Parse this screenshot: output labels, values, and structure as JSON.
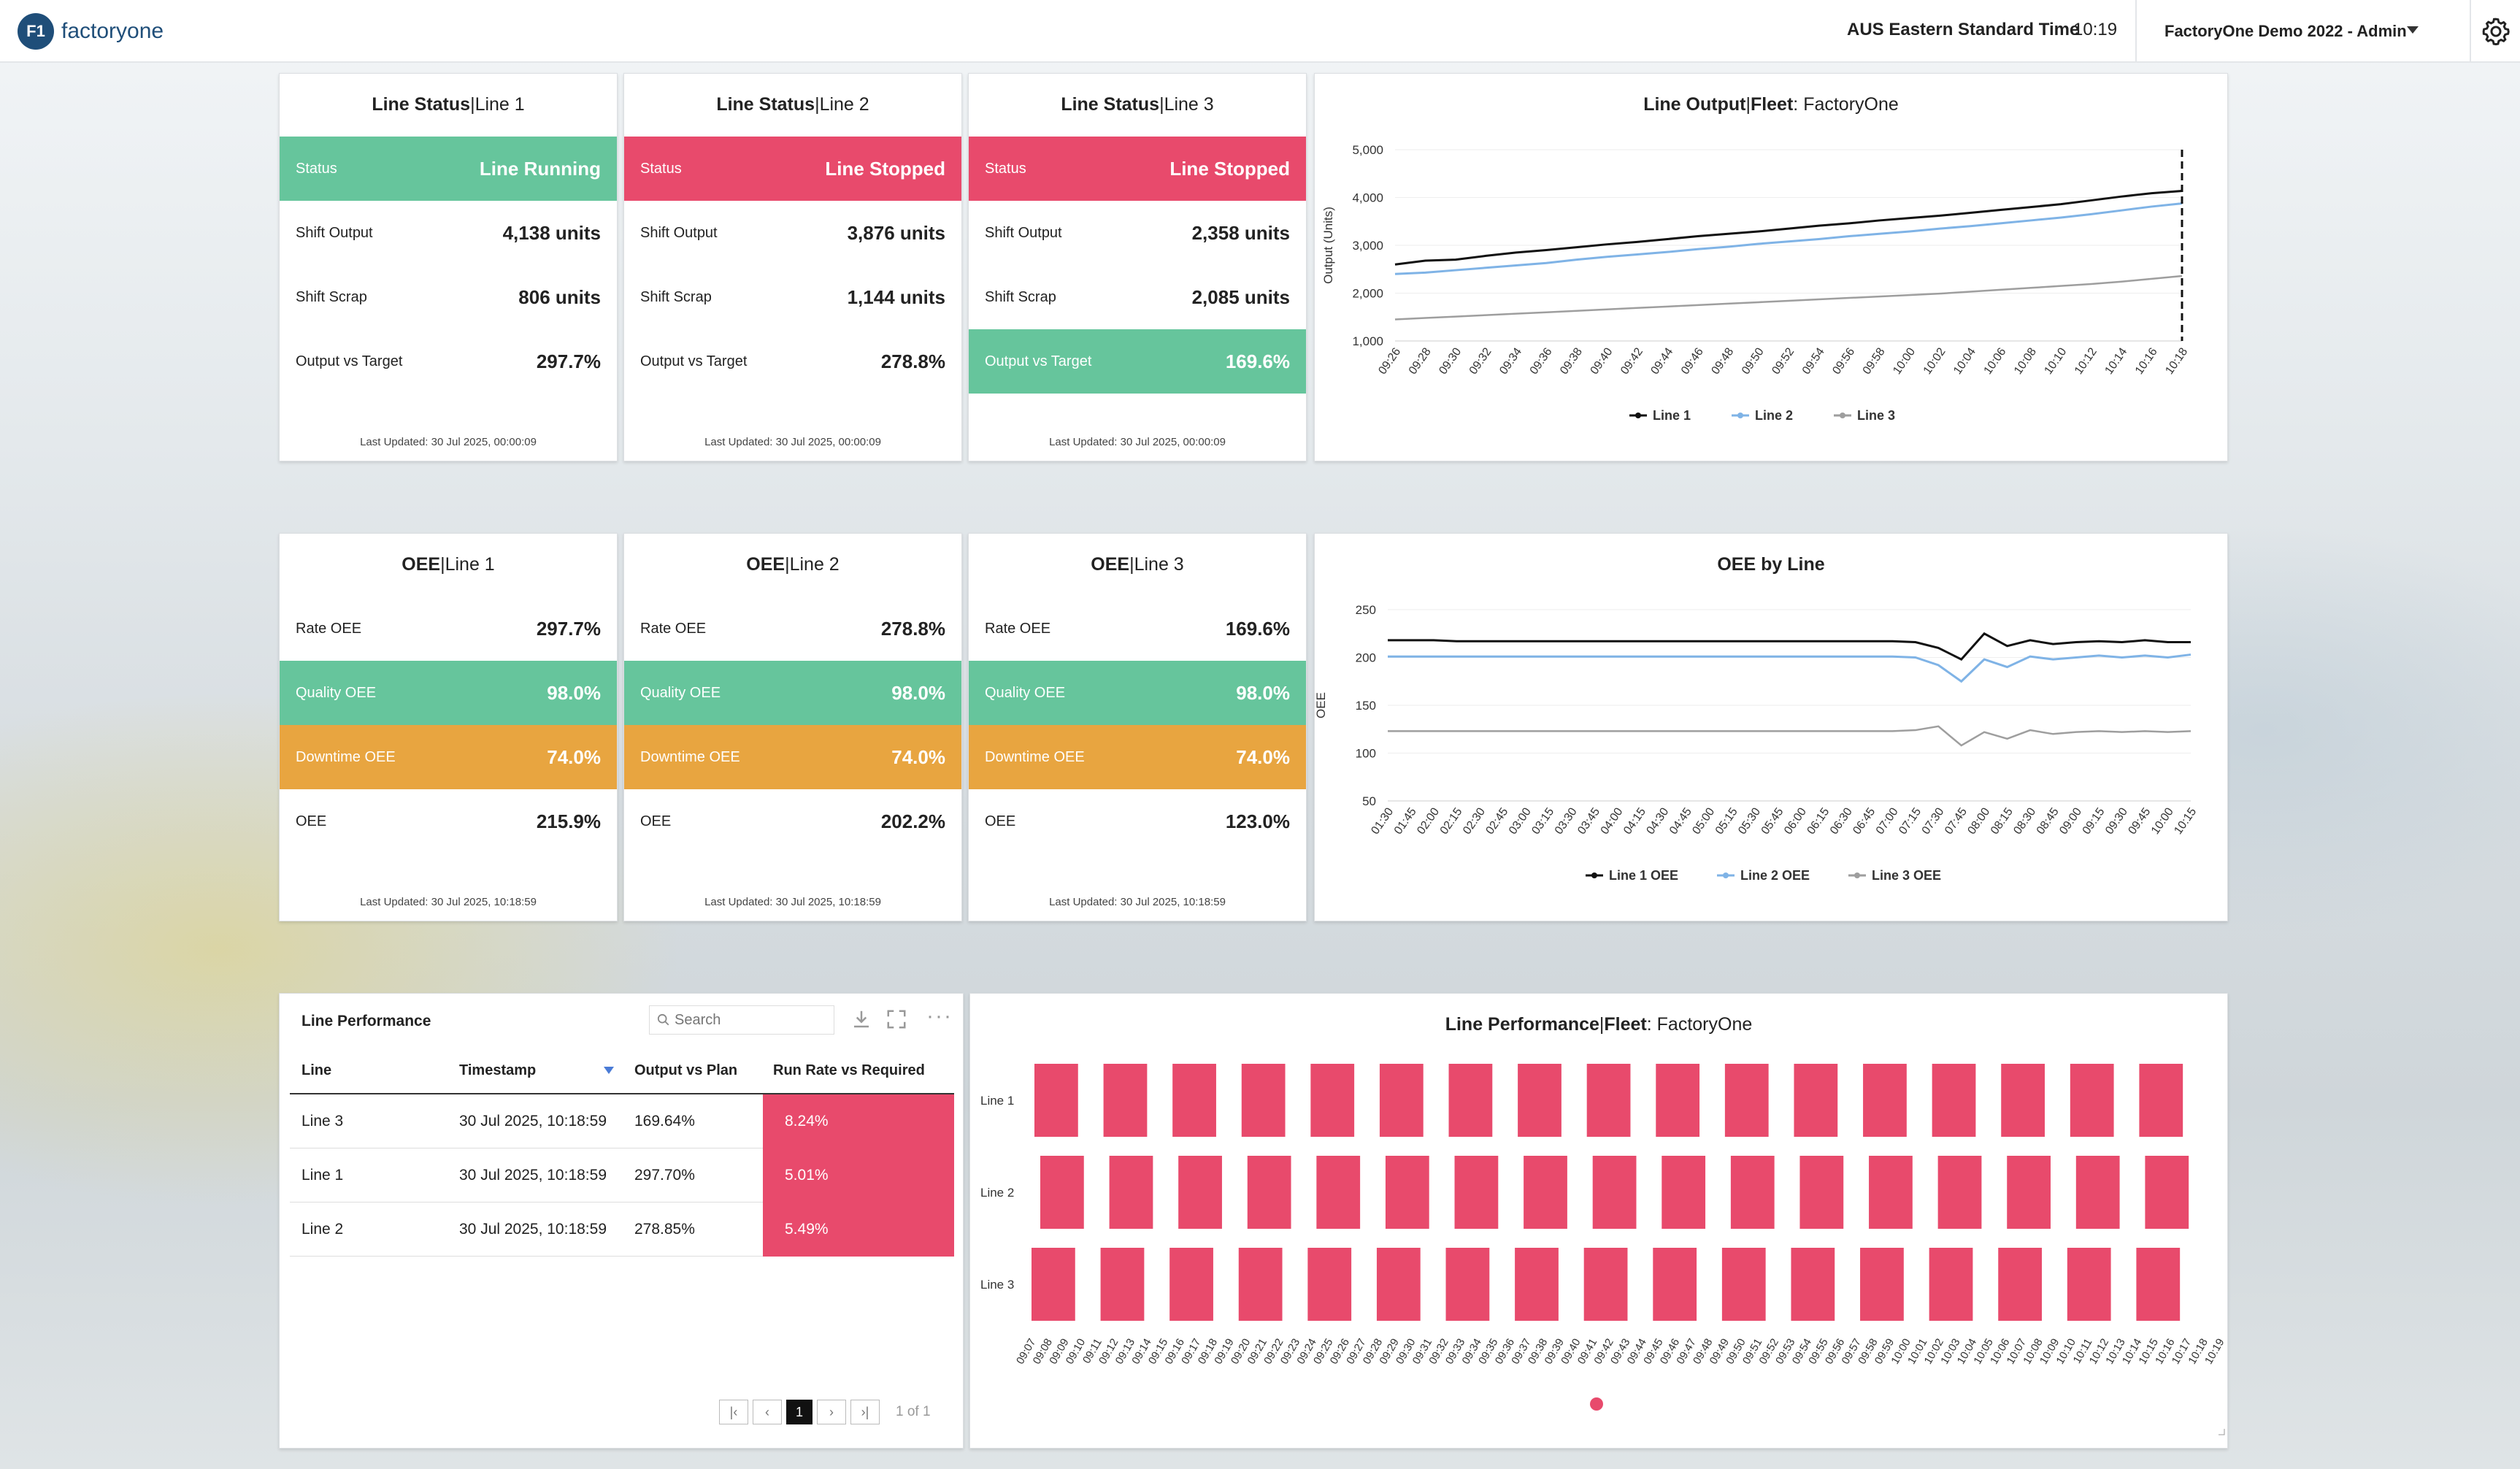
{
  "header": {
    "logo_mark": "F1",
    "logo_text": "factoryone",
    "timezone": "AUS Eastern Standard Time",
    "time": "10:19",
    "tenant": "FactoryOne Demo 2022 - Admin"
  },
  "status_cards": [
    {
      "title_bold": "Line Status",
      "title_sep": "|",
      "title_rest": "Line 1",
      "status_label": "Status",
      "status_value": "Line Running",
      "status_color": "#66c59c",
      "rows": [
        {
          "label": "Shift Output",
          "value": "4,138 units"
        },
        {
          "label": "Shift Scrap",
          "value": "806 units"
        },
        {
          "label": "Output vs Target",
          "value": "297.7%"
        }
      ],
      "updated": "Last Updated: 30 Jul 2025, 00:00:09"
    },
    {
      "title_bold": "Line Status",
      "title_sep": "|",
      "title_rest": "Line 2",
      "status_label": "Status",
      "status_value": "Line Stopped",
      "status_color": "#e84a6c",
      "rows": [
        {
          "label": "Shift Output",
          "value": "3,876 units"
        },
        {
          "label": "Shift Scrap",
          "value": "1,144 units"
        },
        {
          "label": "Output vs Target",
          "value": "278.8%"
        }
      ],
      "updated": "Last Updated: 30 Jul 2025, 00:00:09"
    },
    {
      "title_bold": "Line Status",
      "title_sep": "|",
      "title_rest": "Line 3",
      "status_label": "Status",
      "status_value": "Line Stopped",
      "status_color": "#e84a6c",
      "rows": [
        {
          "label": "Shift Output",
          "value": "2,358 units"
        },
        {
          "label": "Shift Scrap",
          "value": "2,085 units"
        },
        {
          "label": "Output vs Target",
          "value": "169.6%",
          "highlight": "#66c59c"
        }
      ],
      "updated": "Last Updated: 30 Jul 2025, 00:00:09"
    }
  ],
  "oee_cards": [
    {
      "title_bold": "OEE",
      "title_sep": "|",
      "title_rest": "Line 1",
      "rows": [
        {
          "label": "Rate OEE",
          "value": "297.7%"
        },
        {
          "label": "Quality OEE",
          "value": "98.0%"
        },
        {
          "label": "Downtime OEE",
          "value": "74.0%"
        },
        {
          "label": "OEE",
          "value": "215.9%"
        }
      ],
      "updated": "Last Updated: 30 Jul 2025, 10:18:59"
    },
    {
      "title_bold": "OEE",
      "title_sep": "|",
      "title_rest": "Line 2",
      "rows": [
        {
          "label": "Rate OEE",
          "value": "278.8%"
        },
        {
          "label": "Quality OEE",
          "value": "98.0%"
        },
        {
          "label": "Downtime OEE",
          "value": "74.0%"
        },
        {
          "label": "OEE",
          "value": "202.2%"
        }
      ],
      "updated": "Last Updated: 30 Jul 2025, 10:18:59"
    },
    {
      "title_bold": "OEE",
      "title_sep": "|",
      "title_rest": "Line 3",
      "rows": [
        {
          "label": "Rate OEE",
          "value": "169.6%"
        },
        {
          "label": "Quality OEE",
          "value": "98.0%"
        },
        {
          "label": "Downtime OEE",
          "value": "74.0%"
        },
        {
          "label": "OEE",
          "value": "123.0%"
        }
      ],
      "updated": "Last Updated: 30 Jul 2025, 10:18:59"
    }
  ],
  "colors": {
    "green": "#66c59c",
    "red": "#e84a6c",
    "orange": "#e8a540",
    "line1": "#111111",
    "line2": "#7fb3e6",
    "line3": "#9e9e9e"
  },
  "table": {
    "title": "Line Performance",
    "search_placeholder": "Search",
    "columns": [
      "Line",
      "Timestamp",
      "Output vs Plan",
      "Run Rate vs Required"
    ],
    "rows": [
      [
        "Line 3",
        "30 Jul 2025, 10:18:59",
        "169.64%",
        "8.24%"
      ],
      [
        "Line 1",
        "30 Jul 2025, 10:18:59",
        "297.70%",
        "5.01%"
      ],
      [
        "Line 2",
        "30 Jul 2025, 10:18:59",
        "278.85%",
        "5.49%"
      ]
    ],
    "page": "1",
    "page_info": "1 of 1"
  },
  "chart_data": [
    {
      "type": "line",
      "title_bold": "Line Output",
      "title_sep": "|",
      "title_mid": "Fleet",
      "title_rest": ": FactoryOne",
      "ylabel": "Output (Units)",
      "ylim": [
        1000,
        5000
      ],
      "yticks": [
        "1,000",
        "2,000",
        "3,000",
        "4,000",
        "5,000"
      ],
      "x": [
        "09:26",
        "09:28",
        "09:30",
        "09:32",
        "09:34",
        "09:36",
        "09:38",
        "09:40",
        "09:42",
        "09:44",
        "09:46",
        "09:48",
        "09:50",
        "09:52",
        "09:54",
        "09:56",
        "09:58",
        "10:00",
        "10:02",
        "10:04",
        "10:06",
        "10:08",
        "10:10",
        "10:12",
        "10:14",
        "10:16",
        "10:18"
      ],
      "series": [
        {
          "name": "Line 1",
          "values": [
            2600,
            2680,
            2700,
            2780,
            2850,
            2900,
            2960,
            3020,
            3070,
            3130,
            3190,
            3240,
            3290,
            3350,
            3410,
            3460,
            3520,
            3570,
            3620,
            3680,
            3740,
            3800,
            3860,
            3940,
            4020,
            4090,
            4138
          ]
        },
        {
          "name": "Line 2",
          "values": [
            2400,
            2430,
            2480,
            2530,
            2580,
            2630,
            2700,
            2760,
            2810,
            2860,
            2920,
            2970,
            3030,
            3080,
            3130,
            3190,
            3240,
            3290,
            3350,
            3400,
            3460,
            3520,
            3580,
            3650,
            3730,
            3810,
            3876
          ]
        },
        {
          "name": "Line 3",
          "values": [
            1450,
            1480,
            1510,
            1540,
            1570,
            1600,
            1630,
            1660,
            1690,
            1720,
            1750,
            1780,
            1810,
            1840,
            1870,
            1900,
            1930,
            1960,
            1990,
            2030,
            2070,
            2110,
            2150,
            2190,
            2240,
            2300,
            2358
          ]
        }
      ]
    },
    {
      "type": "line",
      "title": "OEE by Line",
      "ylabel": "OEE",
      "ylim": [
        50,
        250
      ],
      "yticks": [
        "50",
        "100",
        "150",
        "200",
        "250"
      ],
      "x": [
        "01:30",
        "01:45",
        "02:00",
        "02:15",
        "02:30",
        "02:45",
        "03:00",
        "03:15",
        "03:30",
        "03:45",
        "04:00",
        "04:15",
        "04:30",
        "04:45",
        "05:00",
        "05:15",
        "05:30",
        "05:45",
        "06:00",
        "06:15",
        "06:30",
        "06:45",
        "07:00",
        "07:15",
        "07:30",
        "07:45",
        "08:00",
        "08:15",
        "08:30",
        "08:45",
        "09:00",
        "09:15",
        "09:30",
        "09:45",
        "10:00",
        "10:15"
      ],
      "series": [
        {
          "name": "Line 1 OEE",
          "values": [
            218,
            218,
            218,
            217,
            217,
            217,
            217,
            217,
            217,
            217,
            217,
            217,
            217,
            217,
            217,
            217,
            217,
            217,
            217,
            217,
            217,
            217,
            217,
            216,
            210,
            198,
            225,
            212,
            218,
            214,
            216,
            217,
            216,
            218,
            216,
            216
          ]
        },
        {
          "name": "Line 2 OEE",
          "values": [
            201,
            201,
            201,
            201,
            201,
            201,
            201,
            201,
            201,
            201,
            201,
            201,
            201,
            201,
            201,
            201,
            201,
            201,
            201,
            201,
            201,
            201,
            201,
            200,
            192,
            175,
            198,
            190,
            201,
            198,
            200,
            202,
            200,
            202,
            200,
            203
          ]
        },
        {
          "name": "Line 3 OEE",
          "values": [
            123,
            123,
            123,
            123,
            123,
            123,
            123,
            123,
            123,
            123,
            123,
            123,
            123,
            123,
            123,
            123,
            123,
            123,
            123,
            123,
            123,
            123,
            123,
            124,
            128,
            108,
            122,
            115,
            124,
            120,
            122,
            123,
            122,
            123,
            122,
            123
          ]
        }
      ]
    },
    {
      "type": "heatmap",
      "title_bold": "Line Performance",
      "title_sep": "|",
      "title_mid": "Fleet",
      "title_rest": ": FactoryOne",
      "rows": [
        "Line 1",
        "Line 2",
        "Line 3"
      ],
      "x": [
        "09:07",
        "09:08",
        "09:09",
        "09:10",
        "09:11",
        "09:12",
        "09:13",
        "09:14",
        "09:15",
        "09:16",
        "09:17",
        "09:18",
        "09:19",
        "09:20",
        "09:21",
        "09:22",
        "09:23",
        "09:24",
        "09:25",
        "09:26",
        "09:27",
        "09:28",
        "09:29",
        "09:30",
        "09:31",
        "09:32",
        "09:33",
        "09:34",
        "09:35",
        "09:36",
        "09:37",
        "09:38",
        "09:39",
        "09:40",
        "09:41",
        "09:42",
        "09:43",
        "09:44",
        "09:45",
        "09:46",
        "09:47",
        "09:48",
        "09:49",
        "09:50",
        "09:51",
        "09:52",
        "09:53",
        "09:54",
        "09:55",
        "09:56",
        "09:57",
        "09:58",
        "09:59",
        "10:00",
        "10:01",
        "10:02",
        "10:03",
        "10:04",
        "10:05",
        "10:06",
        "10:07",
        "10:08",
        "10:09",
        "10:10",
        "10:11",
        "10:12",
        "10:13",
        "10:14",
        "10:15",
        "10:16",
        "10:17",
        "10:18",
        "10:19"
      ],
      "color": "#e84a6c"
    }
  ]
}
